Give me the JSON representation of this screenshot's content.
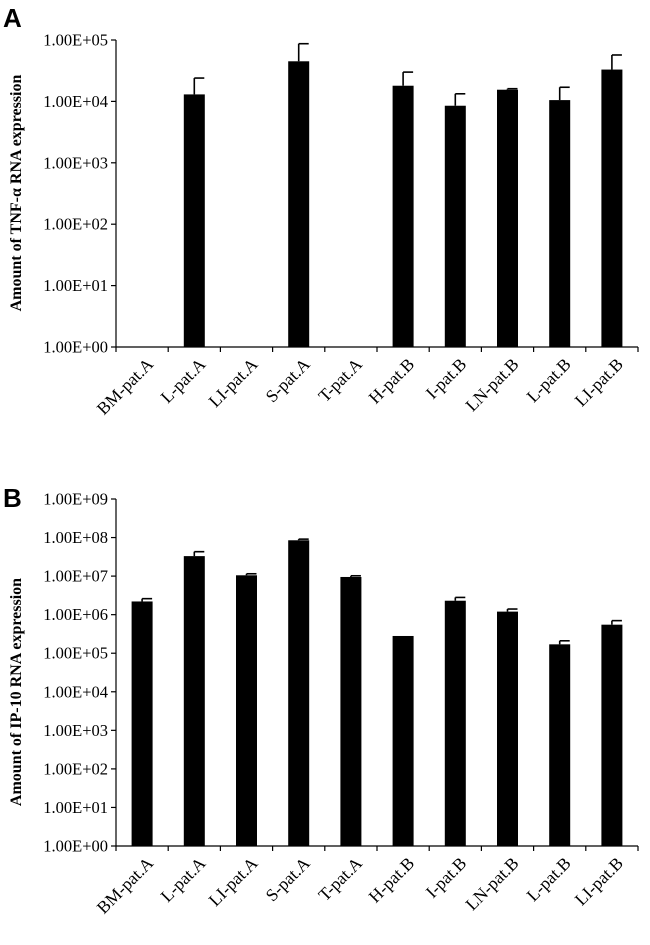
{
  "chart_data": [
    {
      "type": "bar",
      "panel": "A",
      "ylabel": "Amount of TNF-α RNA expression",
      "yscale": "log",
      "ylim": [
        1,
        100000
      ],
      "y_ticks": [
        "1.00E+00",
        "1.00E+01",
        "1.00E+02",
        "1.00E+03",
        "1.00E+04",
        "1.00E+05"
      ],
      "categories": [
        "BM-pat.A",
        "L-pat.A",
        "LI-pat.A",
        "S-pat.A",
        "T-pat.A",
        "H-pat.B",
        "I-pat.B",
        "LN-pat.B",
        "L-pat.B",
        "LI-pat.B"
      ],
      "values": [
        null,
        13000,
        null,
        45000,
        null,
        18000,
        8500,
        15500,
        10500,
        33000
      ],
      "errors": [
        null,
        11000,
        null,
        42000,
        null,
        12000,
        4800,
        600,
        6500,
        24000
      ],
      "legend": "none",
      "grid": false
    },
    {
      "type": "bar",
      "panel": "B",
      "ylabel": "Amount of IP-10 RNA expression",
      "yscale": "log",
      "ylim": [
        1,
        1000000000
      ],
      "y_ticks": [
        "1.00E+00",
        "1.00E+01",
        "1.00E+02",
        "1.00E+03",
        "1.00E+04",
        "1.00E+05",
        "1.00E+06",
        "1.00E+07",
        "1.00E+08",
        "1.00E+09"
      ],
      "categories": [
        "BM-pat.A",
        "L-pat.A",
        "LI-pat.A",
        "S-pat.A",
        "T-pat.A",
        "H-pat.B",
        "I-pat.B",
        "LN-pat.B",
        "L-pat.B",
        "LI-pat.B"
      ],
      "values": [
        2200000,
        33000000,
        10500000,
        85000000,
        9500000,
        280000,
        2300000,
        1200000,
        170000,
        550000
      ],
      "errors": [
        400000,
        10000000,
        1000000,
        6000000,
        700000,
        0,
        500000,
        200000,
        40000,
        150000
      ],
      "legend": "none",
      "grid": false
    }
  ]
}
